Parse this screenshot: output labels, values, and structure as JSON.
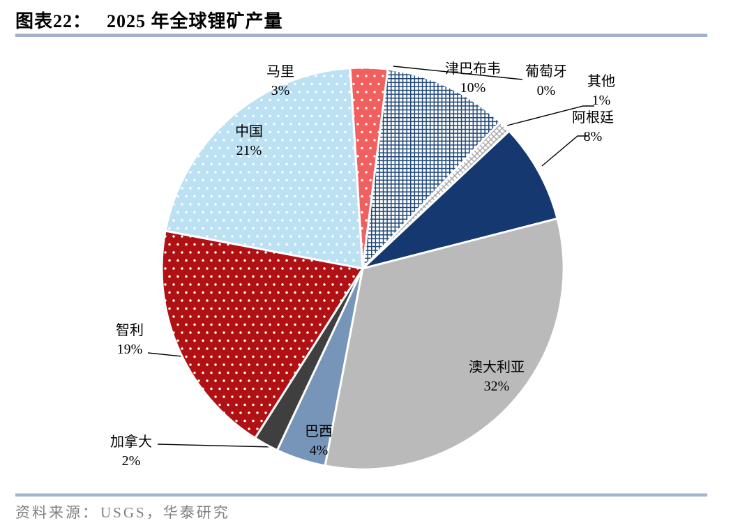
{
  "header": {
    "figure_label": "图表22：",
    "title": "2025 年全球锂矿产量"
  },
  "footer": {
    "source_label": "资料来源：",
    "source": "USGS，华泰研究"
  },
  "chart_data": {
    "type": "pie",
    "title": "2025 年全球锂矿产量",
    "unit": "percent_share",
    "legend": "none",
    "clockwise": true,
    "start_angle_deg": -3.6,
    "slice_border_color": "#FFFFFF",
    "leader_line_color": "#000000",
    "series": [
      {
        "id": "mali",
        "label": "马里",
        "value": 3,
        "pct_label": "3%",
        "fill": "#F15F5F",
        "pattern": "dots",
        "pattern_color": "#FFFFFF"
      },
      {
        "id": "portugal",
        "label": "葡萄牙",
        "value": 0,
        "pct_label": "0%",
        "fill": "none",
        "pattern": "none",
        "pattern_color": "none"
      },
      {
        "id": "zimbabwe",
        "label": "津巴布韦",
        "value": 10,
        "pct_label": "10%",
        "fill": "#FFFFFF",
        "pattern": "grid",
        "pattern_color": "#1F4679"
      },
      {
        "id": "other",
        "label": "其他",
        "value": 1,
        "pct_label": "1%",
        "fill": "#FFFFFF",
        "pattern": "xhatch",
        "pattern_color": "#A8A8A8"
      },
      {
        "id": "argentina",
        "label": "阿根廷",
        "value": 8,
        "pct_label": "8%",
        "fill": "#14386F",
        "pattern": "solid",
        "pattern_color": "none"
      },
      {
        "id": "australia",
        "label": "澳大利亚",
        "value": 32,
        "pct_label": "32%",
        "fill": "#BABABA",
        "pattern": "solid",
        "pattern_color": "none"
      },
      {
        "id": "brazil",
        "label": "巴西",
        "value": 4,
        "pct_label": "4%",
        "fill": "#7795B9",
        "pattern": "solid",
        "pattern_color": "none"
      },
      {
        "id": "canada",
        "label": "加拿大",
        "value": 2,
        "pct_label": "2%",
        "fill": "#3F3F3F",
        "pattern": "solid",
        "pattern_color": "none"
      },
      {
        "id": "chile",
        "label": "智利",
        "value": 19,
        "pct_label": "19%",
        "fill": "#B01114",
        "pattern": "dots",
        "pattern_color": "#FFFFFF"
      },
      {
        "id": "china",
        "label": "中国",
        "value": 21,
        "pct_label": "21%",
        "fill": "#BCE1F3",
        "pattern": "dots",
        "pattern_color": "#FFFFFF"
      }
    ]
  }
}
